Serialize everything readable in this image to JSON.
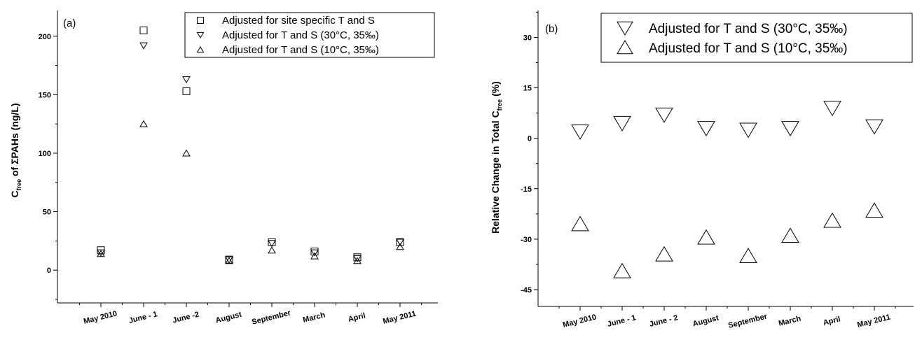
{
  "chart_data": [
    {
      "type": "scatter",
      "panel_label": "(a)",
      "ylabel_main": "C",
      "ylabel_sub": "free",
      "ylabel_rest": " of ΣPAHs (ng/L)",
      "xlabel": "",
      "categories": [
        "May 2010",
        "June - 1",
        "June -2",
        "August",
        "September",
        "March",
        "April",
        "May 2011"
      ],
      "ylim": [
        -28,
        222
      ],
      "yticks": [
        0,
        50,
        100,
        150,
        200
      ],
      "legend_position": "top-right",
      "series": [
        {
          "name": "Adjusted for site specific T and S",
          "marker": "square",
          "values": [
            17,
            205,
            153,
            9,
            24,
            16,
            11,
            24
          ]
        },
        {
          "name": "Adjusted for T and S (30°C, 35‰)",
          "marker": "triangle-down",
          "values": [
            15,
            192,
            163,
            9,
            23,
            15,
            10,
            24
          ]
        },
        {
          "name": "Adjusted for T and S  (10°C, 35‰)",
          "marker": "triangle-up",
          "values": [
            14,
            125,
            100,
            8,
            17,
            12,
            8,
            20
          ]
        }
      ]
    },
    {
      "type": "scatter",
      "panel_label": "(b)",
      "ylabel_main": "Relative Change in Total C",
      "ylabel_sub": "free",
      "ylabel_rest": " (%)",
      "xlabel": "",
      "categories": [
        "May 2010",
        "June - 1",
        "June - 2",
        "August",
        "September",
        "March",
        "April",
        "May 2011"
      ],
      "ylim": [
        -50,
        38
      ],
      "yticks": [
        -45,
        -30,
        -15,
        0,
        15,
        30
      ],
      "legend_position": "top-right",
      "series": [
        {
          "name": "Adjusted for T and S (30°C, 35‰)",
          "marker": "triangle-down",
          "values": [
            2,
            4.5,
            7,
            3,
            2.5,
            3,
            9,
            3.5
          ]
        },
        {
          "name": "Adjusted for T and S (10°C, 35‰)",
          "marker": "triangle-up",
          "values": [
            -25.5,
            -39.5,
            -34.5,
            -29.5,
            -35,
            -29,
            -24.5,
            -21.5
          ]
        }
      ]
    }
  ]
}
